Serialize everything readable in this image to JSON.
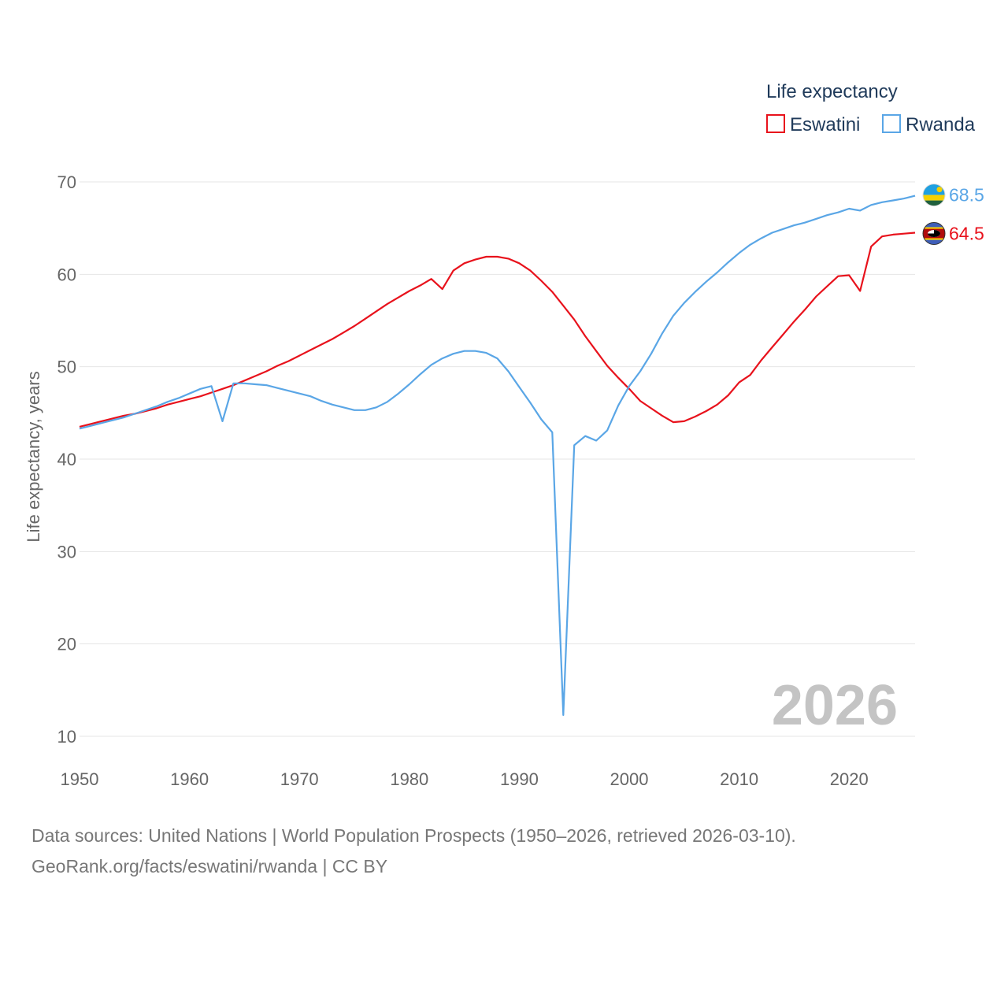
{
  "chart_data": {
    "type": "line",
    "title": "",
    "xlabel": "",
    "ylabel": "Life expectancy, years",
    "xlim": [
      1950,
      2026
    ],
    "ylim": [
      10,
      70
    ],
    "xticks": [
      1950,
      1960,
      1970,
      1980,
      1990,
      2000,
      2010,
      2020
    ],
    "yticks": [
      10,
      20,
      30,
      40,
      50,
      60,
      70
    ],
    "grid": true,
    "legend": {
      "title": "Life expectancy",
      "position": "top-right",
      "entries": [
        "Eswatini",
        "Rwanda"
      ]
    },
    "year_label": "2026",
    "series": [
      {
        "name": "Eswatini",
        "color": "#e8121c",
        "end_label": "64.5",
        "flag": "eswatini-flag",
        "x": [
          1950,
          1951,
          1952,
          1953,
          1954,
          1955,
          1956,
          1957,
          1958,
          1959,
          1960,
          1961,
          1962,
          1963,
          1964,
          1965,
          1966,
          1967,
          1968,
          1969,
          1970,
          1971,
          1972,
          1973,
          1974,
          1975,
          1976,
          1977,
          1978,
          1979,
          1980,
          1981,
          1982,
          1983,
          1984,
          1985,
          1986,
          1987,
          1988,
          1989,
          1990,
          1991,
          1992,
          1993,
          1994,
          1995,
          1996,
          1997,
          1998,
          1999,
          2000,
          2001,
          2002,
          2003,
          2004,
          2005,
          2006,
          2007,
          2008,
          2009,
          2010,
          2011,
          2012,
          2013,
          2014,
          2015,
          2016,
          2017,
          2018,
          2019,
          2020,
          2021,
          2022,
          2023,
          2024,
          2025,
          2026
        ],
        "values": [
          43.5,
          43.8,
          44.1,
          44.4,
          44.7,
          44.9,
          45.2,
          45.5,
          45.9,
          46.2,
          46.5,
          46.8,
          47.2,
          47.6,
          48.0,
          48.5,
          49.0,
          49.5,
          50.1,
          50.6,
          51.2,
          51.8,
          52.4,
          53.0,
          53.7,
          54.4,
          55.2,
          56.0,
          56.8,
          57.5,
          58.2,
          58.8,
          59.5,
          58.4,
          60.4,
          61.2,
          61.6,
          61.9,
          61.9,
          61.7,
          61.2,
          60.4,
          59.3,
          58.1,
          56.6,
          55.1,
          53.3,
          51.7,
          50.1,
          48.8,
          47.6,
          46.3,
          45.5,
          44.7,
          44.0,
          44.1,
          44.6,
          45.2,
          45.9,
          46.9,
          48.3,
          49.1,
          50.7,
          52.1,
          53.5,
          54.9,
          56.2,
          57.6,
          58.7,
          59.8,
          59.9,
          58.2,
          63.0,
          64.1,
          64.3,
          64.4,
          64.5
        ]
      },
      {
        "name": "Rwanda",
        "color": "#5aa6e6",
        "end_label": "68.5",
        "flag": "rwanda-flag",
        "x": [
          1950,
          1951,
          1952,
          1953,
          1954,
          1955,
          1956,
          1957,
          1958,
          1959,
          1960,
          1961,
          1962,
          1963,
          1964,
          1965,
          1966,
          1967,
          1968,
          1969,
          1970,
          1971,
          1972,
          1973,
          1974,
          1975,
          1976,
          1977,
          1978,
          1979,
          1980,
          1981,
          1982,
          1983,
          1984,
          1985,
          1986,
          1987,
          1988,
          1989,
          1990,
          1991,
          1992,
          1993,
          1994,
          1995,
          1996,
          1997,
          1998,
          1999,
          2000,
          2001,
          2002,
          2003,
          2004,
          2005,
          2006,
          2007,
          2008,
          2009,
          2010,
          2011,
          2012,
          2013,
          2014,
          2015,
          2016,
          2017,
          2018,
          2019,
          2020,
          2021,
          2022,
          2023,
          2024,
          2025,
          2026
        ],
        "values": [
          43.3,
          43.6,
          43.9,
          44.2,
          44.5,
          44.9,
          45.3,
          45.7,
          46.2,
          46.6,
          47.1,
          47.6,
          47.9,
          44.1,
          48.2,
          48.2,
          48.1,
          48.0,
          47.7,
          47.4,
          47.1,
          46.8,
          46.3,
          45.9,
          45.6,
          45.3,
          45.3,
          45.6,
          46.2,
          47.1,
          48.1,
          49.2,
          50.2,
          50.9,
          51.4,
          51.7,
          51.7,
          51.5,
          50.9,
          49.5,
          47.8,
          46.1,
          44.3,
          42.9,
          12.3,
          41.5,
          42.5,
          42.0,
          43.1,
          45.8,
          47.9,
          49.5,
          51.4,
          53.6,
          55.5,
          56.9,
          58.1,
          59.2,
          60.2,
          61.3,
          62.3,
          63.2,
          63.9,
          64.5,
          64.9,
          65.3,
          65.6,
          66.0,
          66.4,
          66.7,
          67.1,
          66.9,
          67.5,
          67.8,
          68.0,
          68.2,
          68.5
        ]
      }
    ]
  },
  "source": {
    "line1": "Data sources: United Nations | World Population Prospects (1950–2026, retrieved 2026-03-10).",
    "line2": "GeoRank.org/facts/eswatini/rwanda | CC BY"
  }
}
